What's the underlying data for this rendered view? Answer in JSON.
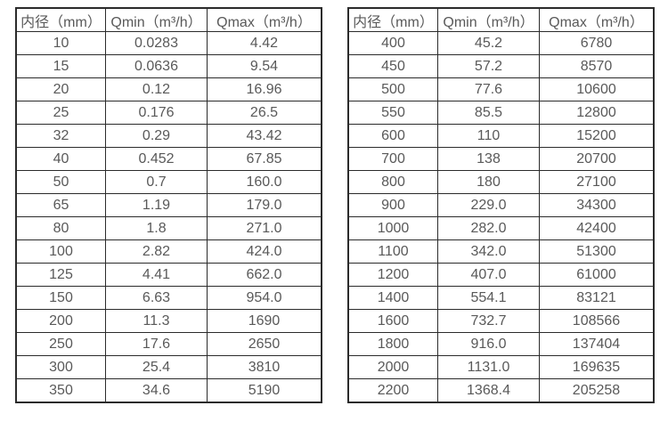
{
  "colors": {
    "background": "#ffffff",
    "border": "#2b2b2b",
    "text": "#595959"
  },
  "tables": [
    {
      "name": "small-diameter-flow-table",
      "headers": [
        "内径（mm）",
        "Qmin（m³/h）",
        "Qmax（m³/h）"
      ],
      "rows": [
        [
          "10",
          "0.0283",
          "4.42"
        ],
        [
          "15",
          "0.0636",
          "9.54"
        ],
        [
          "20",
          "0.12",
          "16.96"
        ],
        [
          "25",
          "0.176",
          "26.5"
        ],
        [
          "32",
          "0.29",
          "43.42"
        ],
        [
          "40",
          "0.452",
          "67.85"
        ],
        [
          "50",
          "0.7",
          "160.0"
        ],
        [
          "65",
          "1.19",
          "179.0"
        ],
        [
          "80",
          "1.8",
          "271.0"
        ],
        [
          "100",
          "2.82",
          "424.0"
        ],
        [
          "125",
          "4.41",
          "662.0"
        ],
        [
          "150",
          "6.63",
          "954.0"
        ],
        [
          "200",
          "11.3",
          "1690"
        ],
        [
          "250",
          "17.6",
          "2650"
        ],
        [
          "300",
          "25.4",
          "3810"
        ],
        [
          "350",
          "34.6",
          "5190"
        ]
      ]
    },
    {
      "name": "large-diameter-flow-table",
      "headers": [
        "内径（mm）",
        "Qmin（m³/h）",
        "Qmax（m³/h）"
      ],
      "rows": [
        [
          "400",
          "45.2",
          "6780"
        ],
        [
          "450",
          "57.2",
          "8570"
        ],
        [
          "500",
          "77.6",
          "10600"
        ],
        [
          "550",
          "85.5",
          "12800"
        ],
        [
          "600",
          "110",
          "15200"
        ],
        [
          "700",
          "138",
          "20700"
        ],
        [
          "800",
          "180",
          "27100"
        ],
        [
          "900",
          "229.0",
          "34300"
        ],
        [
          "1000",
          "282.0",
          "42400"
        ],
        [
          "1100",
          "342.0",
          "51300"
        ],
        [
          "1200",
          "407.0",
          "61000"
        ],
        [
          "1400",
          "554.1",
          "83121"
        ],
        [
          "1600",
          "732.7",
          "108566"
        ],
        [
          "1800",
          "916.0",
          "137404"
        ],
        [
          "2000",
          "1131.0",
          "169635"
        ],
        [
          "2200",
          "1368.4",
          "205258"
        ]
      ]
    }
  ]
}
